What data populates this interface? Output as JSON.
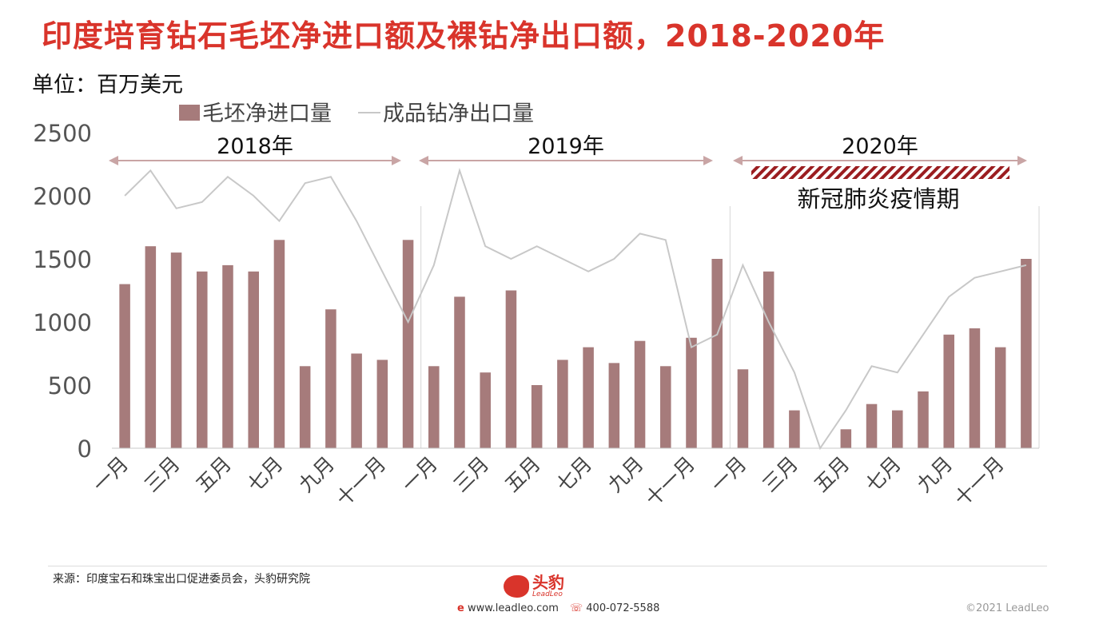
{
  "title": "印度培育钻石毛坯净进口额及裸钻净出口额，2018-2020年",
  "unit": "单位：百万美元",
  "source": "来源：印度宝石和珠宝出口促进委员会，头豹研究院",
  "logo": {
    "name": "头豹",
    "sub": "LeadLeo"
  },
  "contact": {
    "website": "www.leadleo.com",
    "phone": "400-072-5588"
  },
  "copyright": "©2021 LeadLeo",
  "annotation": "新冠肺炎疫情期",
  "colors": {
    "bar": "#a67b7b",
    "line": "#c8c8c8",
    "title": "#d9342b",
    "arrow": "#c9a5a5",
    "hatch": "#9b1d20"
  },
  "chart_data": {
    "type": "bar",
    "series": [
      {
        "name": "毛坯净进口量",
        "type": "bar",
        "values": [
          1300,
          1600,
          1550,
          1400,
          1450,
          1400,
          1650,
          650,
          1100,
          750,
          700,
          1650,
          650,
          1200,
          600,
          1250,
          500,
          700,
          800,
          675,
          850,
          650,
          875,
          1500,
          625,
          1400,
          300,
          0,
          150,
          350,
          300,
          450,
          900,
          950,
          800,
          1500
        ]
      },
      {
        "name": "成品钻净出口量",
        "type": "line",
        "values": [
          2000,
          2200,
          1900,
          1950,
          2150,
          2000,
          1800,
          2100,
          2150,
          1800,
          1400,
          1000,
          1450,
          2200,
          1600,
          1500,
          1600,
          1500,
          1400,
          1500,
          1700,
          1650,
          800,
          900,
          1450,
          1000,
          600,
          0,
          300,
          650,
          600,
          900,
          1200,
          1350,
          1400,
          1450
        ]
      }
    ],
    "x_tick_labels": [
      "一月",
      "三月",
      "五月",
      "七月",
      "九月",
      "十一月",
      "一月",
      "三月",
      "五月",
      "七月",
      "九月",
      "十一月",
      "一月",
      "三月",
      "五月",
      "七月",
      "九月",
      "十一月"
    ],
    "year_labels": [
      "2018年",
      "2019年",
      "2020年"
    ],
    "yticks": [
      0,
      500,
      1000,
      1500,
      2000,
      2500
    ],
    "ylim": [
      0,
      2500
    ],
    "legend": "top",
    "grid": false
  }
}
